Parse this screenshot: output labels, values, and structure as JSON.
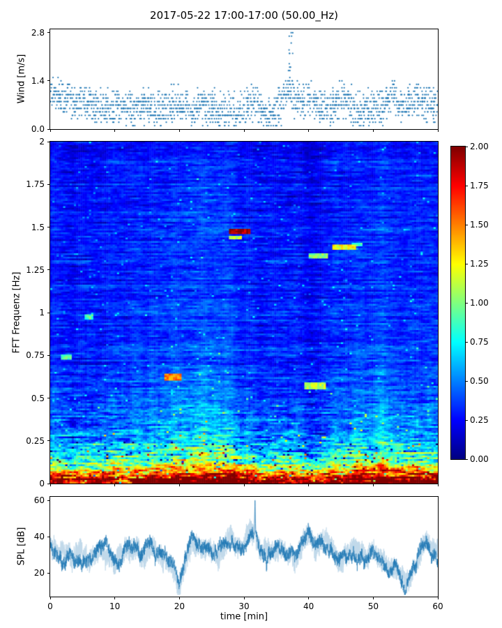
{
  "figure": {
    "title": "2017-05-22 17:00-17:00 (50.00_Hz)",
    "background_color": "#ffffff"
  },
  "chart_data": [
    {
      "type": "scatter",
      "name": "wind-speed",
      "ylabel": "Wind [m/s]",
      "marker_color": "#1f77b4",
      "xlim": [
        0,
        60
      ],
      "ylim": [
        0,
        2.9
      ],
      "yticks": [
        0,
        1.4,
        2.8
      ],
      "ytick_labels": [
        "0.0",
        "1.4",
        "2.8"
      ],
      "quantize_step": 0.1,
      "points_per_minute": 26,
      "minute_means": [
        1.1,
        1.0,
        0.9,
        0.9,
        0.8,
        0.9,
        0.7,
        0.6,
        0.7,
        0.6,
        0.6,
        0.7,
        0.65,
        0.55,
        0.6,
        0.7,
        0.6,
        0.55,
        0.6,
        0.65,
        0.7,
        0.75,
        0.6,
        0.65,
        0.6,
        0.55,
        0.5,
        0.45,
        0.5,
        0.55,
        0.65,
        0.8,
        0.75,
        0.5,
        0.45,
        0.5,
        0.8,
        1.2,
        0.9,
        0.75,
        0.85,
        0.7,
        0.55,
        0.6,
        0.75,
        0.85,
        0.8,
        0.6,
        0.55,
        0.6,
        0.5,
        0.6,
        0.85,
        0.9,
        0.7,
        0.6,
        0.75,
        0.85,
        0.8,
        0.7,
        0.65
      ],
      "gust": {
        "t": 37.3,
        "max": 2.8
      }
    },
    {
      "type": "heatmap",
      "name": "fft-spectrogram",
      "ylabel": "FFT Frequenz [Hz]",
      "colormap": "jet",
      "vmin": 0,
      "vmax": 2,
      "xlim": [
        0,
        60
      ],
      "ylim": [
        0,
        2
      ],
      "yticks": [
        0,
        0.25,
        0.5,
        0.75,
        1,
        1.25,
        1.5,
        1.75,
        2
      ],
      "ytick_labels": [
        "0",
        "0.25",
        "0.5",
        "0.75",
        "1",
        "1.25",
        "1.5",
        "1.75",
        "2"
      ],
      "profile_freq": [
        0,
        0.05,
        0.1,
        0.15,
        0.2,
        0.25,
        0.3,
        0.4,
        0.5,
        0.75,
        1.0,
        1.5,
        2.0
      ],
      "profile_value": [
        2.2,
        1.7,
        1.1,
        0.85,
        0.7,
        0.6,
        0.52,
        0.44,
        0.4,
        0.34,
        0.31,
        0.29,
        0.28
      ],
      "features": [
        {
          "t": 29.3,
          "f": 1.47,
          "dt": 3.5,
          "df": 0.015,
          "v": 1.9
        },
        {
          "t": 28.6,
          "f": 1.44,
          "dt": 2.0,
          "df": 0.012,
          "v": 1.1
        },
        {
          "t": 41.5,
          "f": 1.33,
          "dt": 3.0,
          "df": 0.015,
          "v": 1.0
        },
        {
          "t": 45.5,
          "f": 1.38,
          "dt": 4.0,
          "df": 0.015,
          "v": 1.25
        },
        {
          "t": 47.5,
          "f": 1.4,
          "dt": 1.5,
          "df": 0.012,
          "v": 0.9
        },
        {
          "t": 19.0,
          "f": 0.62,
          "dt": 3.0,
          "df": 0.02,
          "v": 1.5
        },
        {
          "t": 41.0,
          "f": 0.57,
          "dt": 3.5,
          "df": 0.02,
          "v": 1.1
        },
        {
          "t": 6.0,
          "f": 0.97,
          "dt": 1.5,
          "df": 0.015,
          "v": 0.9
        },
        {
          "t": 2.5,
          "f": 0.74,
          "dt": 1.5,
          "df": 0.02,
          "v": 0.9
        }
      ],
      "colorbar": {
        "ticks": [
          0,
          0.25,
          0.5,
          0.75,
          1,
          1.25,
          1.5,
          1.75,
          2
        ],
        "tick_labels": [
          "0.00",
          "0.25",
          "0.50",
          "0.75",
          "1.00",
          "1.25",
          "1.50",
          "1.75",
          "2.00"
        ]
      }
    },
    {
      "type": "line",
      "name": "spl",
      "ylabel": "SPL [dB]",
      "xlabel": "time [min]",
      "line_color": "#1f77b4",
      "xlim": [
        0,
        60
      ],
      "ylim": [
        7,
        62
      ],
      "yticks": [
        20,
        40,
        60
      ],
      "ytick_labels": [
        "20",
        "40",
        "60"
      ],
      "xticks": [
        0,
        10,
        20,
        30,
        40,
        50,
        60
      ],
      "xtick_labels": [
        "0",
        "10",
        "20",
        "30",
        "40",
        "50",
        "60"
      ],
      "minute_means": [
        36,
        31,
        29,
        33,
        30,
        27,
        26,
        31,
        34,
        29,
        26,
        31,
        36,
        33,
        30,
        37,
        35,
        30,
        28,
        24,
        14,
        26,
        39,
        36,
        33,
        30,
        29,
        33,
        36,
        31,
        34,
        44,
        36,
        30,
        29,
        31,
        33,
        30,
        29,
        36,
        42,
        33,
        39,
        36,
        31,
        29,
        31,
        33,
        30,
        29,
        31,
        29,
        26,
        22,
        17,
        14,
        21,
        29,
        36,
        31,
        29
      ],
      "peaks": [
        {
          "t": 31.7,
          "v": 60
        }
      ]
    }
  ]
}
